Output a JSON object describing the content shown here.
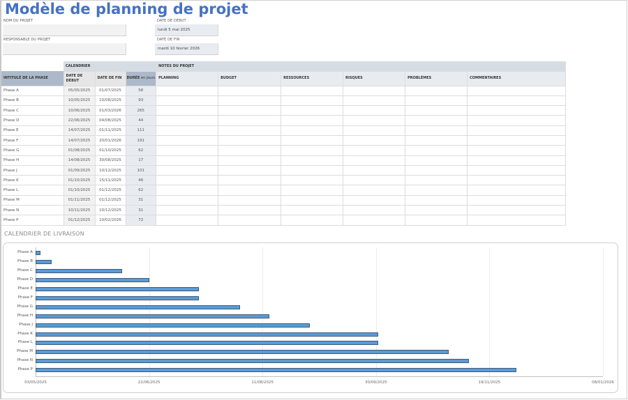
{
  "title": "Modèle de planning de projet",
  "header_fields": {
    "project_name": {
      "label": "NOM DU PROJET",
      "value": ""
    },
    "project_manager": {
      "label": "RESPONSABLE DU PROJET",
      "value": ""
    },
    "start_date": {
      "label": "DATE DE DÉBUT",
      "value": "lundi 5 mai 2025"
    },
    "end_date": {
      "label": "DATE DE FIN",
      "value": "mardi 10 février 2026"
    }
  },
  "table": {
    "group_headers": {
      "calendar": "CALENDRIER",
      "notes": "NOTES DU PROJET"
    },
    "columns": {
      "phase": "INTITULÉ DE LA PHASE",
      "start": "DATE DE DÉBUT",
      "end": "DATE DE FIN",
      "duration_bold": "DURÉE",
      "duration_light": " en jours",
      "planning": "PLANNING",
      "budget": "BUDGET",
      "resources": "RESSOURCES",
      "risks": "RISQUES",
      "problems": "PROBLÈMES",
      "comments": "COMMENTAIRES"
    },
    "rows": [
      {
        "phase": "Phase A",
        "start": "05/05/2025",
        "end": "01/07/2025",
        "duration": "58"
      },
      {
        "phase": "Phase B",
        "start": "10/05/2025",
        "end": "10/08/2025",
        "duration": "93"
      },
      {
        "phase": "Phase C",
        "start": "10/06/2025",
        "end": "01/03/2026",
        "duration": "265"
      },
      {
        "phase": "Phase D",
        "start": "22/06/2025",
        "end": "04/08/2025",
        "duration": "44"
      },
      {
        "phase": "Phase E",
        "start": "14/07/2025",
        "end": "01/11/2025",
        "duration": "111"
      },
      {
        "phase": "Phase F",
        "start": "14/07/2025",
        "end": "20/01/2026",
        "duration": "191"
      },
      {
        "phase": "Phase G",
        "start": "01/08/2025",
        "end": "01/10/2025",
        "duration": "62"
      },
      {
        "phase": "Phase H",
        "start": "14/08/2025",
        "end": "30/08/2025",
        "duration": "17"
      },
      {
        "phase": "Phase J",
        "start": "01/09/2025",
        "end": "10/12/2025",
        "duration": "101"
      },
      {
        "phase": "Phase K",
        "start": "01/10/2025",
        "end": "15/11/2025",
        "duration": "46"
      },
      {
        "phase": "Phase L",
        "start": "01/10/2025",
        "end": "01/12/2025",
        "duration": "62"
      },
      {
        "phase": "Phase M",
        "start": "01/11/2025",
        "end": "01/12/2025",
        "duration": "31"
      },
      {
        "phase": "Phase N",
        "start": "10/11/2025",
        "end": "10/12/2025",
        "duration": "31"
      },
      {
        "phase": "Phase P",
        "start": "01/12/2025",
        "end": "10/02/2026",
        "duration": "72"
      }
    ]
  },
  "chart_section_title": "CALENDRIER DE LIVRAISON",
  "colors": {
    "title": "#4472c4",
    "bar_fill": "#5b9bd5",
    "bar_border": "#41597a",
    "header_blue": "#acb9ca",
    "header_grey": "#d6dce4"
  },
  "chart_data": {
    "type": "bar",
    "orientation": "horizontal",
    "title": "CALENDRIER DE LIVRAISON",
    "categories": [
      "Phase A",
      "Phase B",
      "Phase C",
      "Phase D",
      "Phase E",
      "Phase F",
      "Phase G",
      "Phase H",
      "Phase J",
      "Phase K",
      "Phase L",
      "Phase M",
      "Phase N",
      "Phase P"
    ],
    "series": [
      {
        "name": "Date de début",
        "values": [
          "05/05/2025",
          "10/05/2025",
          "10/06/2025",
          "22/06/2025",
          "14/07/2025",
          "14/07/2025",
          "01/08/2025",
          "14/08/2025",
          "01/09/2025",
          "01/10/2025",
          "01/10/2025",
          "01/11/2025",
          "10/11/2025",
          "01/12/2025"
        ],
        "days_from_axis_min": [
          2,
          7,
          38,
          50,
          72,
          72,
          90,
          103,
          121,
          151,
          151,
          182,
          191,
          212
        ]
      }
    ],
    "x_tick_labels": [
      "03/05/2025",
      "22/06/2025",
      "11/08/2025",
      "30/09/2025",
      "19/11/2025",
      "08/01/2026"
    ],
    "xlim": [
      "03/05/2025",
      "08/01/2026"
    ],
    "x_span_days": 250,
    "grid": true,
    "legend": "none",
    "xlabel": "",
    "ylabel": ""
  }
}
